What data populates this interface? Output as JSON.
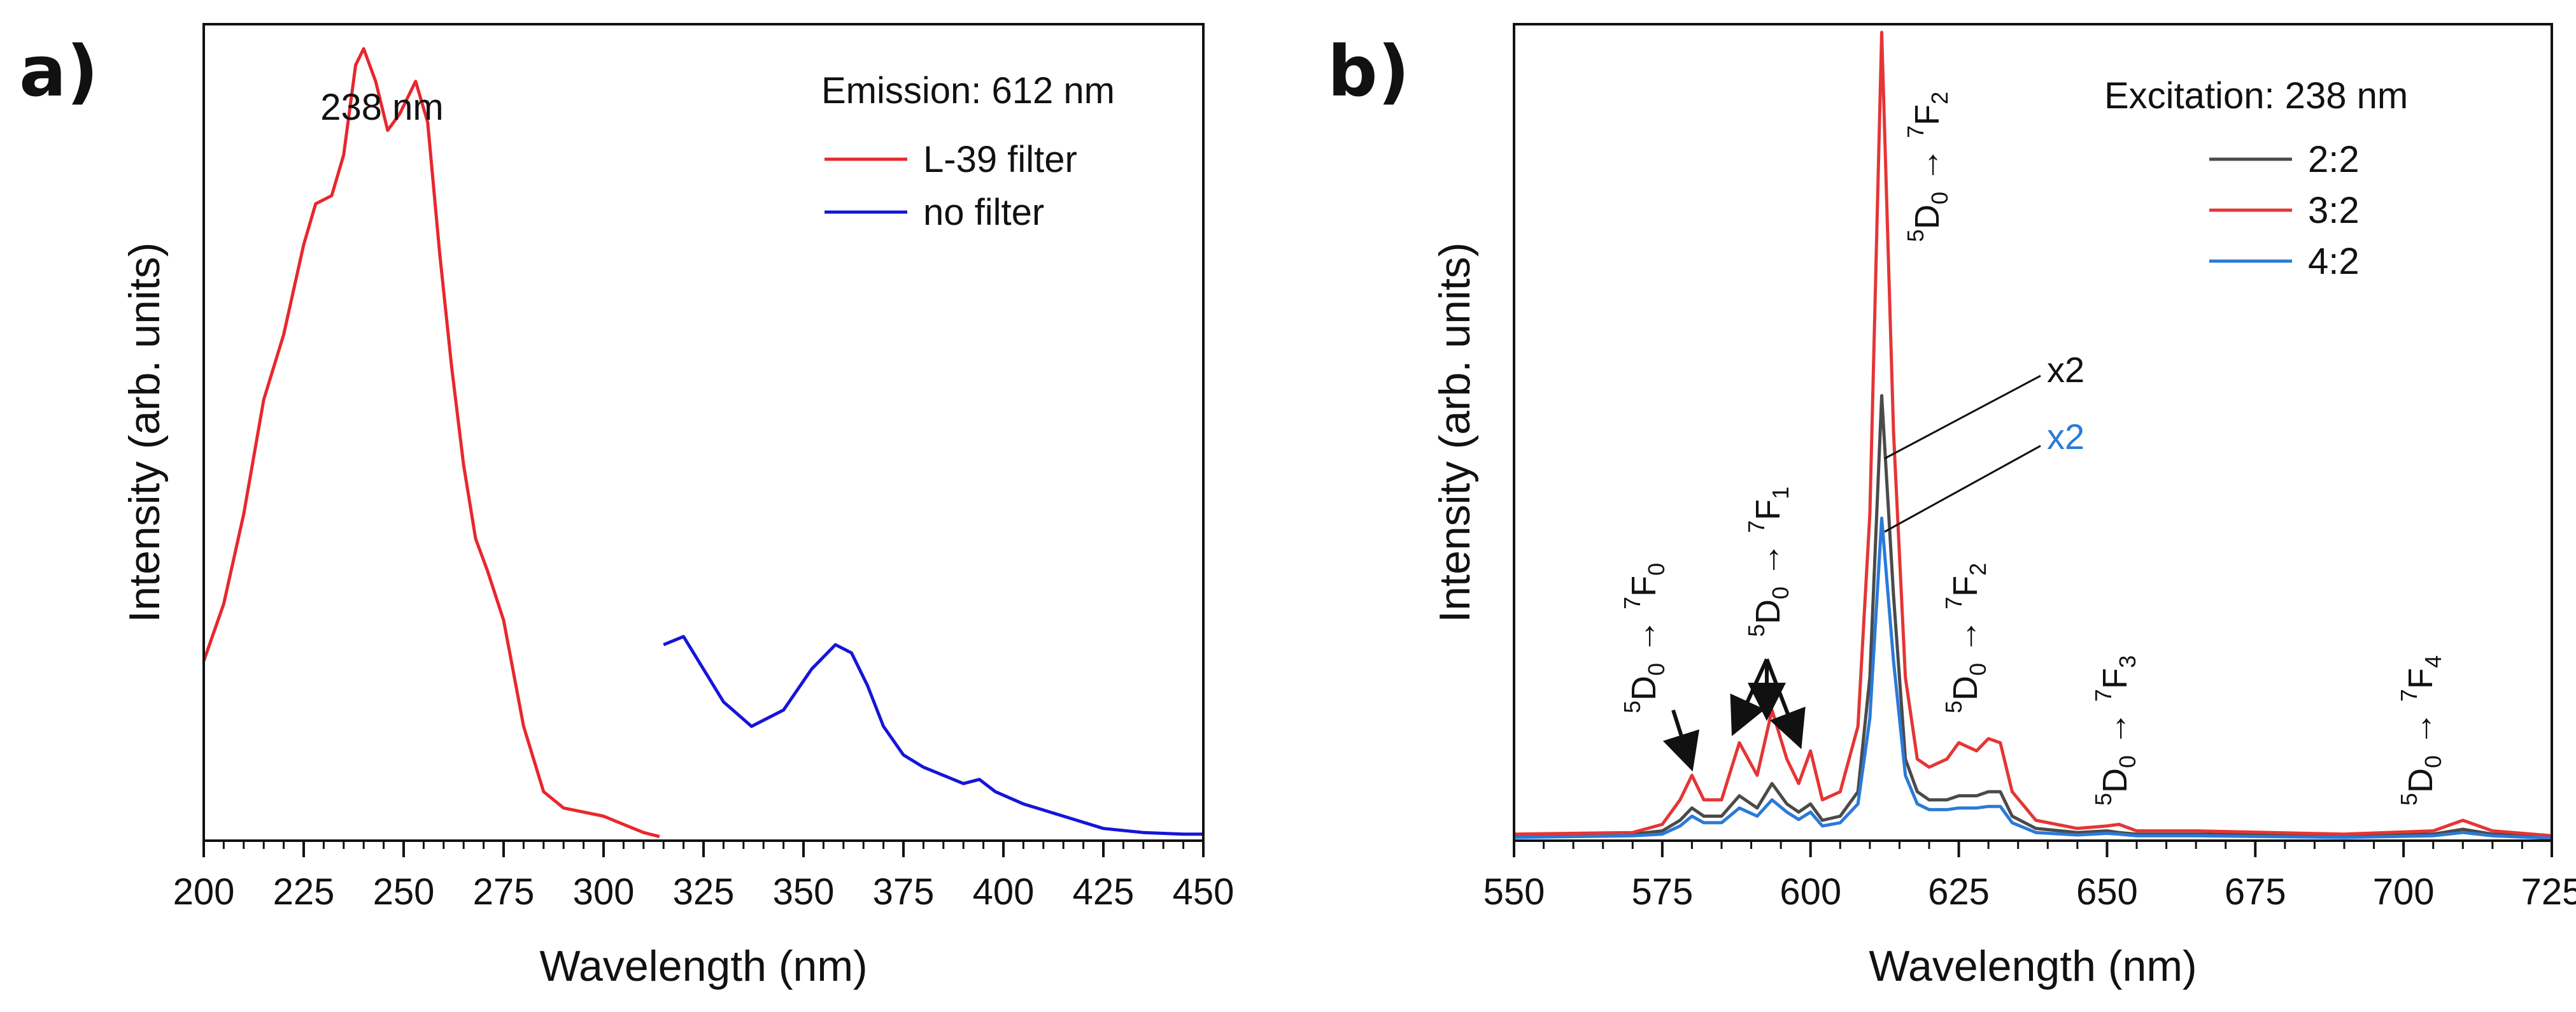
{
  "colors": {
    "red": "#e8272e",
    "blue": "#1515d8",
    "gray": "#4a4a4a",
    "red_b": "#e53535",
    "blue_b": "#2a7ad8",
    "axis": "#111111"
  },
  "chart_data": [
    {
      "panel": "a)",
      "type": "line",
      "title": "",
      "xlabel": "Wavelength (nm)",
      "ylabel": "Intensity (arb. units)",
      "xlim": [
        200,
        450
      ],
      "ylim": [
        0,
        1.0
      ],
      "xticks": [
        200,
        225,
        250,
        275,
        300,
        325,
        350,
        375,
        400,
        425,
        450
      ],
      "legend_title": "Emission: 612 nm",
      "legend_position": "top-right",
      "annotations": [
        {
          "text": "238 nm",
          "x": 238
        }
      ],
      "series": [
        {
          "name": "L-39 filter",
          "color_key": "red",
          "x": [
            200,
            205,
            210,
            215,
            220,
            225,
            228,
            232,
            235,
            238,
            240,
            243,
            246,
            249,
            253,
            256,
            259,
            262,
            265,
            268,
            271,
            275,
            280,
            285,
            290,
            295,
            300,
            305,
            310,
            314
          ],
          "y": [
            0.22,
            0.29,
            0.4,
            0.54,
            0.62,
            0.73,
            0.78,
            0.79,
            0.84,
            0.95,
            0.97,
            0.93,
            0.87,
            0.89,
            0.93,
            0.88,
            0.72,
            0.58,
            0.46,
            0.37,
            0.33,
            0.27,
            0.14,
            0.06,
            0.04,
            0.035,
            0.03,
            0.02,
            0.01,
            0.005
          ]
        },
        {
          "name": "no filter",
          "color_key": "blue",
          "x": [
            315,
            320,
            325,
            330,
            337,
            345,
            352,
            358,
            362,
            366,
            370,
            375,
            380,
            385,
            390,
            394,
            398,
            405,
            415,
            425,
            435,
            445,
            450
          ],
          "y": [
            0.24,
            0.25,
            0.21,
            0.17,
            0.14,
            0.16,
            0.21,
            0.24,
            0.23,
            0.19,
            0.14,
            0.105,
            0.09,
            0.08,
            0.07,
            0.075,
            0.06,
            0.045,
            0.03,
            0.015,
            0.01,
            0.008,
            0.008
          ]
        }
      ]
    },
    {
      "panel": "b)",
      "type": "line",
      "title": "",
      "xlabel": "Wavelength (nm)",
      "ylabel": "Intensity (arb. units)",
      "xlim": [
        550,
        725
      ],
      "ylim": [
        0,
        1.0
      ],
      "xticks": [
        550,
        575,
        600,
        625,
        650,
        675,
        700,
        725
      ],
      "legend_title": "Excitation: 238 nm",
      "legend_position": "top-right",
      "series": [
        {
          "name": "2:2",
          "color_key": "gray",
          "x": [
            550,
            570,
            575,
            578,
            580,
            582,
            585,
            588,
            591,
            593.5,
            596,
            598,
            600,
            602,
            605,
            608,
            610,
            612,
            614,
            616,
            618,
            620,
            623,
            625,
            628,
            630,
            632,
            634,
            638,
            645,
            650,
            652,
            655,
            665,
            690,
            705,
            710,
            715,
            725
          ],
          "y": [
            0.006,
            0.008,
            0.012,
            0.025,
            0.04,
            0.03,
            0.03,
            0.055,
            0.04,
            0.07,
            0.045,
            0.035,
            0.045,
            0.025,
            0.03,
            0.06,
            0.2,
            0.545,
            0.3,
            0.1,
            0.06,
            0.05,
            0.05,
            0.055,
            0.055,
            0.06,
            0.06,
            0.03,
            0.015,
            0.01,
            0.012,
            0.01,
            0.008,
            0.008,
            0.006,
            0.008,
            0.014,
            0.008,
            0.005
          ]
        },
        {
          "name": "3:2",
          "color_key": "red_b",
          "x": [
            550,
            570,
            575,
            578,
            580,
            582,
            585,
            588,
            591,
            593.5,
            596,
            598,
            600,
            602,
            605,
            608,
            610,
            612,
            614,
            616,
            618,
            620,
            623,
            625,
            628,
            630,
            632,
            634,
            638,
            645,
            650,
            652,
            655,
            665,
            690,
            705,
            710,
            715,
            725
          ],
          "y": [
            0.008,
            0.01,
            0.02,
            0.05,
            0.08,
            0.05,
            0.05,
            0.12,
            0.08,
            0.16,
            0.1,
            0.07,
            0.11,
            0.05,
            0.06,
            0.14,
            0.4,
            0.99,
            0.5,
            0.2,
            0.1,
            0.09,
            0.1,
            0.12,
            0.11,
            0.125,
            0.12,
            0.06,
            0.025,
            0.015,
            0.018,
            0.02,
            0.012,
            0.012,
            0.008,
            0.012,
            0.025,
            0.012,
            0.006
          ]
        },
        {
          "name": "4:2",
          "color_key": "blue_b",
          "x": [
            550,
            570,
            575,
            578,
            580,
            582,
            585,
            588,
            591,
            593.5,
            596,
            598,
            600,
            602,
            605,
            608,
            610,
            612,
            614,
            616,
            618,
            620,
            623,
            625,
            628,
            630,
            632,
            634,
            638,
            645,
            650,
            652,
            655,
            665,
            690,
            705,
            710,
            715,
            725
          ],
          "y": [
            0.004,
            0.006,
            0.008,
            0.018,
            0.03,
            0.022,
            0.022,
            0.04,
            0.03,
            0.05,
            0.035,
            0.026,
            0.035,
            0.018,
            0.022,
            0.045,
            0.15,
            0.395,
            0.22,
            0.08,
            0.045,
            0.038,
            0.038,
            0.04,
            0.04,
            0.042,
            0.042,
            0.022,
            0.01,
            0.007,
            0.009,
            0.008,
            0.006,
            0.006,
            0.004,
            0.006,
            0.01,
            0.006,
            0.003
          ]
        }
      ],
      "annotations": {
        "multiplier_gray": "x2",
        "multiplier_blue": "x2",
        "transitions": [
          {
            "id": "f0",
            "x": 581,
            "from_sup": "5",
            "from": "D",
            "from_sub": "0",
            "arrow": "→",
            "to_sup": "7",
            "to": "F",
            "to_sub": "0"
          },
          {
            "id": "f1",
            "x": 593.5,
            "from_sup": "5",
            "from": "D",
            "from_sub": "0",
            "arrow": "→",
            "to_sup": "7",
            "to": "F",
            "to_sub": "1"
          },
          {
            "id": "f2a",
            "x": 618,
            "from_sup": "5",
            "from": "D",
            "from_sub": "0",
            "arrow": "→",
            "to_sup": "7",
            "to": "F",
            "to_sub": "2"
          },
          {
            "id": "f2b",
            "x": 631,
            "from_sup": "5",
            "from": "D",
            "from_sub": "0",
            "arrow": "→",
            "to_sup": "7",
            "to": "F",
            "to_sub": "2"
          },
          {
            "id": "f3",
            "x": 653,
            "from_sup": "5",
            "from": "D",
            "from_sub": "0",
            "arrow": "→",
            "to_sup": "7",
            "to": "F",
            "to_sub": "3"
          },
          {
            "id": "f4",
            "x": 710,
            "from_sup": "5",
            "from": "D",
            "from_sub": "0",
            "arrow": "→",
            "to_sup": "7",
            "to": "F",
            "to_sub": "4"
          }
        ]
      }
    }
  ]
}
